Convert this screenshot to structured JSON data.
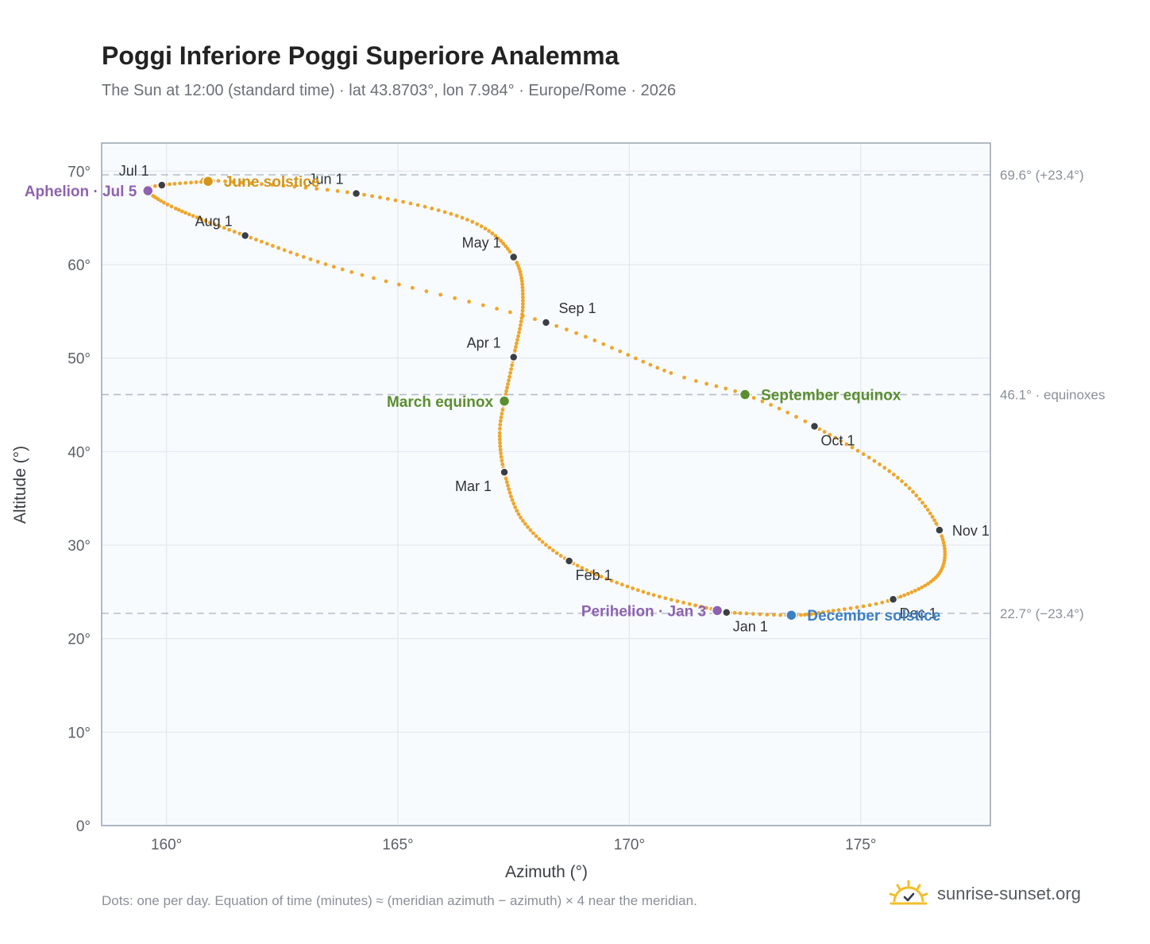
{
  "header": {
    "title": "Poggi Inferiore Poggi Superiore Analemma",
    "subtitle": "The Sun at 12:00 (standard time) · lat 43.8703°, lon 7.984° · Europe/Rome · 2026"
  },
  "footer": {
    "note": "Dots: one per day. Equation of time (minutes) ≈ (meridian azimuth − azimuth) × 4 near the meridian.",
    "brand": "sunrise-sunset.org",
    "brand_icon": "sun-logo-icon"
  },
  "colors": {
    "path": "#f0a52a",
    "month_marker": "#3a3e45",
    "solstice_june": "#d4951a",
    "solstice_december": "#3d7fc4",
    "equinox": "#5a8e2f",
    "apsis": "#8e62b0",
    "plot_bg": "#f8fbfe",
    "grid": "#e3e8ee",
    "frame": "#98a3b1",
    "ref_line": "#b4bec9"
  },
  "chart_data": {
    "type": "scatter",
    "title": "Poggi Inferiore Poggi Superiore Analemma",
    "xlabel": "Azimuth (°)",
    "ylabel": "Altitude (°)",
    "xlim": [
      158.6,
      177.8
    ],
    "ylim": [
      0,
      73
    ],
    "x_ticks": [
      160,
      165,
      170,
      175
    ],
    "y_ticks": [
      0,
      10,
      20,
      30,
      40,
      50,
      60,
      70
    ],
    "x_tick_labels": [
      "160°",
      "165°",
      "170°",
      "175°"
    ],
    "y_tick_labels": [
      "0°",
      "10°",
      "20°",
      "30°",
      "40°",
      "50°",
      "60°",
      "70°"
    ],
    "grid": true,
    "reference_lines": [
      {
        "y": 69.6,
        "label": "69.6° (+23.4°)"
      },
      {
        "y": 46.1,
        "label": "46.1° · equinoxes"
      },
      {
        "y": 22.7,
        "label": "22.7° (−23.4°)"
      }
    ],
    "path_anchors": [
      {
        "doy": 1,
        "az": 172.1,
        "alt": 22.8
      },
      {
        "doy": 17,
        "az": 170.3,
        "alt": 25.0
      },
      {
        "doy": 32,
        "az": 168.7,
        "alt": 28.3
      },
      {
        "doy": 46,
        "az": 167.7,
        "alt": 32.6
      },
      {
        "doy": 60,
        "az": 167.3,
        "alt": 37.8
      },
      {
        "doy": 71,
        "az": 167.2,
        "alt": 42.0
      },
      {
        "doy": 79,
        "az": 167.3,
        "alt": 45.4
      },
      {
        "doy": 91,
        "az": 167.5,
        "alt": 50.1
      },
      {
        "doy": 106,
        "az": 167.7,
        "alt": 55.8
      },
      {
        "doy": 121,
        "az": 167.5,
        "alt": 60.8
      },
      {
        "doy": 136,
        "az": 166.5,
        "alt": 64.8
      },
      {
        "doy": 152,
        "az": 164.1,
        "alt": 67.6
      },
      {
        "doy": 167,
        "az": 161.0,
        "alt": 69.0
      },
      {
        "doy": 172,
        "az": 160.9,
        "alt": 68.9
      },
      {
        "doy": 182,
        "az": 159.9,
        "alt": 68.5
      },
      {
        "doy": 186,
        "az": 159.6,
        "alt": 67.9
      },
      {
        "doy": 197,
        "az": 160.2,
        "alt": 66.0
      },
      {
        "doy": 213,
        "az": 161.7,
        "alt": 63.1
      },
      {
        "doy": 229,
        "az": 164.0,
        "alt": 59.2
      },
      {
        "doy": 244,
        "az": 168.2,
        "alt": 53.8
      },
      {
        "doy": 259,
        "az": 170.9,
        "alt": 48.4
      },
      {
        "doy": 266,
        "az": 172.5,
        "alt": 46.1
      },
      {
        "doy": 274,
        "az": 174.0,
        "alt": 42.7
      },
      {
        "doy": 290,
        "az": 175.8,
        "alt": 37.2
      },
      {
        "doy": 305,
        "az": 176.7,
        "alt": 31.6
      },
      {
        "doy": 320,
        "az": 176.7,
        "alt": 27.0
      },
      {
        "doy": 335,
        "az": 175.7,
        "alt": 24.2
      },
      {
        "doy": 346,
        "az": 174.3,
        "alt": 22.9
      },
      {
        "doy": 355,
        "az": 173.5,
        "alt": 22.5
      },
      {
        "doy": 366,
        "az": 172.1,
        "alt": 22.8
      }
    ],
    "month_markers": [
      {
        "label": "Jan 1",
        "az": 172.1,
        "alt": 22.8,
        "pos": "below-right"
      },
      {
        "label": "Feb 1",
        "az": 168.7,
        "alt": 28.3,
        "pos": "below-right"
      },
      {
        "label": "Mar 1",
        "az": 167.3,
        "alt": 37.8,
        "pos": "below-left"
      },
      {
        "label": "Apr 1",
        "az": 167.5,
        "alt": 50.1,
        "pos": "above-left"
      },
      {
        "label": "May 1",
        "az": 167.5,
        "alt": 60.8,
        "pos": "above-left"
      },
      {
        "label": "Jun 1",
        "az": 164.1,
        "alt": 67.6,
        "pos": "above-left"
      },
      {
        "label": "Jul 1",
        "az": 159.9,
        "alt": 68.5,
        "pos": "above-left"
      },
      {
        "label": "Aug 1",
        "az": 161.7,
        "alt": 63.1,
        "pos": "above-left"
      },
      {
        "label": "Sep 1",
        "az": 168.2,
        "alt": 53.8,
        "pos": "above-right"
      },
      {
        "label": "Oct 1",
        "az": 174.0,
        "alt": 42.7,
        "pos": "below-right"
      },
      {
        "label": "Nov 1",
        "az": 176.7,
        "alt": 31.6,
        "pos": "right"
      },
      {
        "label": "Dec 1",
        "az": 175.7,
        "alt": 24.2,
        "pos": "below-right"
      }
    ],
    "events": [
      {
        "label": "June solstice",
        "az": 160.9,
        "alt": 68.9,
        "color_key": "solstice_june",
        "pos": "right"
      },
      {
        "label": "December solstice",
        "az": 173.5,
        "alt": 22.5,
        "color_key": "solstice_december",
        "pos": "right"
      },
      {
        "label": "March equinox",
        "az": 167.3,
        "alt": 45.4,
        "color_key": "equinox",
        "pos": "left"
      },
      {
        "label": "September equinox",
        "az": 172.5,
        "alt": 46.1,
        "color_key": "equinox",
        "pos": "right"
      },
      {
        "label": "Aphelion · Jul 5",
        "az": 159.6,
        "alt": 67.9,
        "color_key": "apsis",
        "pos": "left"
      },
      {
        "label": "Perihelion · Jan 3",
        "az": 171.9,
        "alt": 23.0,
        "color_key": "apsis",
        "pos": "left"
      }
    ]
  }
}
